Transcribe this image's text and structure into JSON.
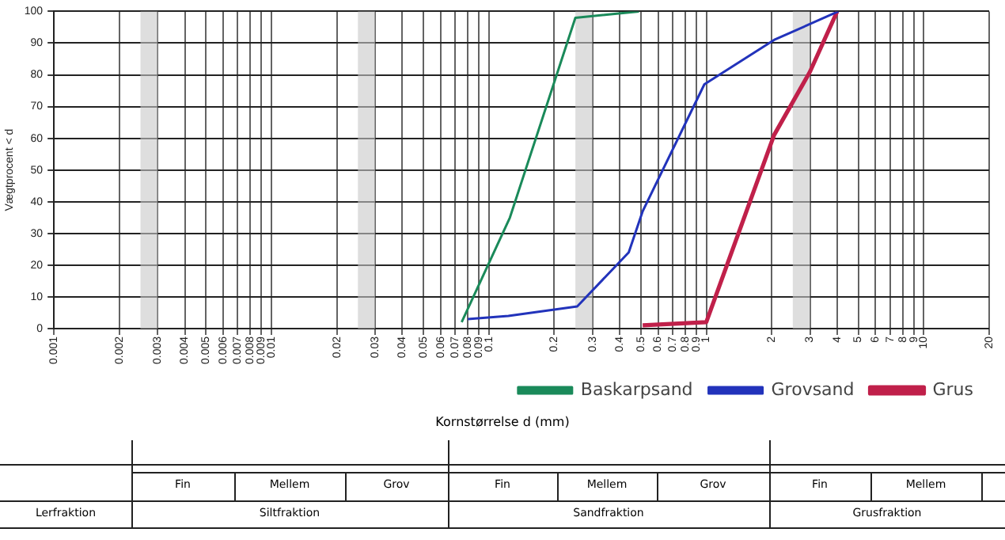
{
  "chart_data": {
    "type": "line",
    "xlabel": "Kornstørrelse d (mm)",
    "ylabel": "Vægtprocent < d",
    "log": "x",
    "grid": true,
    "legend": "bottom",
    "marker": "none",
    "line_style": "solid",
    "xlim": [
      0.001,
      20
    ],
    "xticks": [
      0.001,
      0.002,
      0.003,
      0.004,
      0.005,
      0.006,
      0.007,
      0.008,
      0.009,
      0.01,
      0.02,
      0.03,
      0.04,
      0.05,
      0.06,
      0.07,
      0.08,
      0.09,
      0.1,
      0.2,
      0.3,
      0.4,
      0.5,
      0.6,
      0.7,
      0.8,
      0.9,
      1,
      2,
      3,
      4,
      5,
      6,
      7,
      8,
      9,
      10,
      20
    ],
    "ylim": [
      0,
      100
    ],
    "yticks": [
      0,
      10,
      20,
      30,
      40,
      50,
      60,
      70,
      80,
      90,
      100
    ],
    "bands": [
      {
        "axis": "x",
        "from": 0.0025,
        "to": 0.003,
        "color": "#c8c8c8"
      },
      {
        "axis": "x",
        "from": 0.025,
        "to": 0.03,
        "color": "#c8c8c8"
      },
      {
        "axis": "x",
        "from": 0.25,
        "to": 0.3,
        "color": "#c8c8c8"
      },
      {
        "axis": "x",
        "from": 2.5,
        "to": 3,
        "color": "#c8c8c8"
      }
    ],
    "series": [
      {
        "name": "Baskarpsand",
        "color": "#1a8a5a",
        "x": [
          0.075,
          0.125,
          0.25,
          0.49
        ],
        "values": [
          2,
          35,
          98,
          100
        ]
      },
      {
        "name": "Grovsand",
        "color": "#2233bb",
        "x": [
          0.08,
          0.123,
          0.255,
          0.44,
          0.51,
          0.98,
          2.05,
          4.05
        ],
        "values": [
          3,
          4,
          7,
          24,
          37,
          77,
          91,
          100
        ]
      },
      {
        "name": "Grus",
        "color": "#c0204a",
        "x": [
          0.51,
          1.0,
          2.05,
          3.0,
          4.0
        ],
        "values": [
          1,
          2,
          61,
          81,
          100
        ]
      }
    ],
    "annotations": [
      "Fin",
      "Mellem",
      "Grov",
      "Fin",
      "Mellem",
      "Grov",
      "Fin",
      "Mellem",
      "Lerfraktion",
      "Siltfraktion",
      "Sandfraktion",
      "Grusfraktion"
    ]
  }
}
